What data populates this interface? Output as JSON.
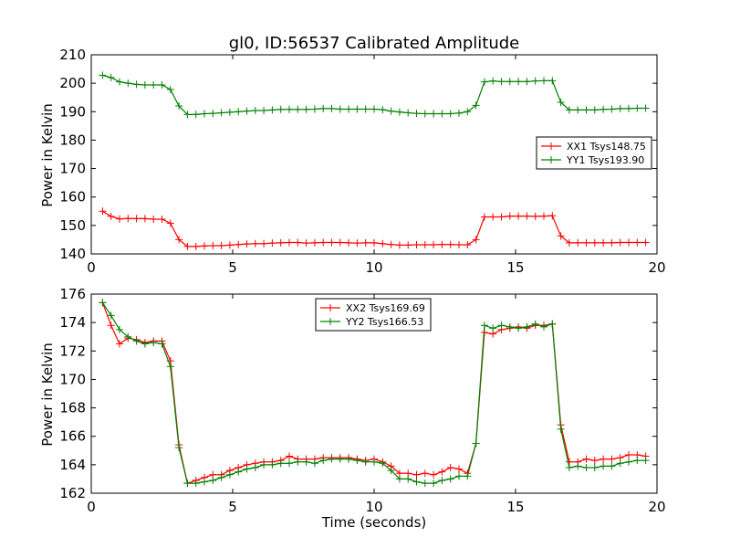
{
  "chart_data": [
    {
      "type": "line",
      "title": "gl0, ID:56537 Calibrated Amplitude",
      "xlabel": "",
      "ylabel": "Power in Kelvin",
      "xlim": [
        0,
        20
      ],
      "ylim": [
        140,
        210
      ],
      "xticks": [
        0,
        5,
        10,
        15,
        20
      ],
      "yticks": [
        140,
        150,
        160,
        170,
        180,
        190,
        200,
        210
      ],
      "grid": false,
      "legend": "right",
      "series": [
        {
          "name": "XX1 Tsys148.75",
          "color": "#ff0000",
          "marker": "plus",
          "x": [
            0.4,
            0.7,
            1.0,
            1.3,
            1.6,
            1.9,
            2.2,
            2.5,
            2.8,
            3.1,
            3.4,
            3.7,
            4.0,
            4.3,
            4.6,
            4.9,
            5.2,
            5.5,
            5.8,
            6.1,
            6.4,
            6.7,
            7.0,
            7.3,
            7.6,
            7.9,
            8.2,
            8.5,
            8.8,
            9.1,
            9.4,
            9.7,
            10.0,
            10.3,
            10.6,
            10.9,
            11.2,
            11.5,
            11.8,
            12.1,
            12.4,
            12.7,
            13.0,
            13.3,
            13.6,
            13.9,
            14.2,
            14.5,
            14.8,
            15.1,
            15.4,
            15.7,
            16.0,
            16.3,
            16.6,
            16.9,
            17.2,
            17.5,
            17.8,
            18.1,
            18.4,
            18.7,
            19.0,
            19.3,
            19.6
          ],
          "y": [
            155,
            153.2,
            152.3,
            152.5,
            152.4,
            152.4,
            152.2,
            152.2,
            150.8,
            145,
            142.6,
            142.6,
            142.8,
            142.9,
            142.9,
            143.1,
            143.3,
            143.5,
            143.6,
            143.6,
            143.8,
            143.9,
            144.0,
            144.0,
            143.8,
            143.9,
            144.0,
            144.0,
            144.0,
            143.9,
            143.8,
            143.9,
            143.9,
            143.6,
            143.3,
            143.1,
            143.1,
            143.2,
            143.2,
            143.2,
            143.3,
            143.3,
            143.2,
            143.2,
            145,
            153,
            153,
            153,
            153.3,
            153.3,
            153.3,
            153.2,
            153.3,
            153.4,
            146.3,
            143.9,
            143.9,
            143.9,
            143.9,
            143.9,
            143.9,
            144.0,
            144.0,
            144.0,
            144.0
          ]
        },
        {
          "name": "YY1 Tsys193.90",
          "color": "#008000",
          "marker": "plus",
          "x": [
            0.4,
            0.7,
            1.0,
            1.3,
            1.6,
            1.9,
            2.2,
            2.5,
            2.8,
            3.1,
            3.4,
            3.7,
            4.0,
            4.3,
            4.6,
            4.9,
            5.2,
            5.5,
            5.8,
            6.1,
            6.4,
            6.7,
            7.0,
            7.3,
            7.6,
            7.9,
            8.2,
            8.5,
            8.8,
            9.1,
            9.4,
            9.7,
            10.0,
            10.3,
            10.6,
            10.9,
            11.2,
            11.5,
            11.8,
            12.1,
            12.4,
            12.7,
            13.0,
            13.3,
            13.6,
            13.9,
            14.2,
            14.5,
            14.8,
            15.1,
            15.4,
            15.7,
            16.0,
            16.3,
            16.6,
            16.9,
            17.2,
            17.5,
            17.8,
            18.1,
            18.4,
            18.7,
            19.0,
            19.3,
            19.6
          ],
          "y": [
            202.8,
            202,
            200.5,
            200,
            199.6,
            199.4,
            199.4,
            199.4,
            197.8,
            192,
            189,
            189,
            189.3,
            189.4,
            189.6,
            189.8,
            190,
            190.2,
            190.4,
            190.4,
            190.6,
            190.8,
            190.8,
            190.8,
            190.8,
            190.9,
            191.1,
            191.1,
            190.9,
            190.9,
            190.9,
            190.9,
            190.9,
            190.7,
            190.2,
            189.9,
            189.6,
            189.4,
            189.3,
            189.3,
            189.3,
            189.3,
            189.5,
            190,
            192.2,
            200.5,
            200.8,
            200.6,
            200.6,
            200.6,
            200.6,
            200.8,
            200.9,
            200.9,
            193.3,
            190.6,
            190.6,
            190.6,
            190.6,
            190.8,
            190.9,
            191.1,
            191.1,
            191.2,
            191.2
          ]
        }
      ]
    },
    {
      "type": "line",
      "title": "",
      "xlabel": "Time (seconds)",
      "ylabel": "Power in Kelvin",
      "xlim": [
        0,
        20
      ],
      "ylim": [
        162,
        176
      ],
      "xticks": [
        0,
        5,
        10,
        15,
        20
      ],
      "yticks": [
        162,
        164,
        166,
        168,
        170,
        172,
        174,
        176
      ],
      "grid": false,
      "legend": "upper-center",
      "series": [
        {
          "name": "XX2 Tsys169.69",
          "color": "#ff0000",
          "marker": "plus",
          "x": [
            0.4,
            0.7,
            1.0,
            1.3,
            1.6,
            1.9,
            2.2,
            2.5,
            2.8,
            3.1,
            3.4,
            3.7,
            4.0,
            4.3,
            4.6,
            4.9,
            5.2,
            5.5,
            5.8,
            6.1,
            6.4,
            6.7,
            7.0,
            7.3,
            7.6,
            7.9,
            8.2,
            8.5,
            8.8,
            9.1,
            9.4,
            9.7,
            10.0,
            10.3,
            10.6,
            10.9,
            11.2,
            11.5,
            11.8,
            12.1,
            12.4,
            12.7,
            13.0,
            13.3,
            13.6,
            13.9,
            14.2,
            14.5,
            14.8,
            15.1,
            15.4,
            15.7,
            16.0,
            16.3,
            16.6,
            16.9,
            17.2,
            17.5,
            17.8,
            18.1,
            18.4,
            18.7,
            19.0,
            19.3,
            19.6
          ],
          "y": [
            175.4,
            173.8,
            172.5,
            172.9,
            172.8,
            172.6,
            172.7,
            172.7,
            171.3,
            165.4,
            162.7,
            162.9,
            163.1,
            163.3,
            163.3,
            163.6,
            163.8,
            164.0,
            164.1,
            164.2,
            164.2,
            164.3,
            164.6,
            164.4,
            164.4,
            164.4,
            164.5,
            164.5,
            164.5,
            164.5,
            164.4,
            164.3,
            164.4,
            164.2,
            163.9,
            163.4,
            163.4,
            163.3,
            163.4,
            163.3,
            163.5,
            163.8,
            163.7,
            163.4,
            165.5,
            173.3,
            173.2,
            173.5,
            173.6,
            173.7,
            173.6,
            173.8,
            173.8,
            173.9,
            166.8,
            164.2,
            164.2,
            164.4,
            164.3,
            164.4,
            164.4,
            164.5,
            164.7,
            164.7,
            164.6
          ]
        },
        {
          "name": "YY2 Tsys166.53",
          "color": "#008000",
          "marker": "plus",
          "x": [
            0.4,
            0.7,
            1.0,
            1.3,
            1.6,
            1.9,
            2.2,
            2.5,
            2.8,
            3.1,
            3.4,
            3.7,
            4.0,
            4.3,
            4.6,
            4.9,
            5.2,
            5.5,
            5.8,
            6.1,
            6.4,
            6.7,
            7.0,
            7.3,
            7.6,
            7.9,
            8.2,
            8.5,
            8.8,
            9.1,
            9.4,
            9.7,
            10.0,
            10.3,
            10.6,
            10.9,
            11.2,
            11.5,
            11.8,
            12.1,
            12.4,
            12.7,
            13.0,
            13.3,
            13.6,
            13.9,
            14.2,
            14.5,
            14.8,
            15.1,
            15.4,
            15.7,
            16.0,
            16.3,
            16.6,
            16.9,
            17.2,
            17.5,
            17.8,
            18.1,
            18.4,
            18.7,
            19.0,
            19.3,
            19.6
          ],
          "y": [
            175.4,
            174.5,
            173.5,
            173.0,
            172.7,
            172.5,
            172.6,
            172.5,
            170.9,
            165.2,
            162.7,
            162.7,
            162.8,
            162.9,
            163.1,
            163.3,
            163.5,
            163.7,
            163.8,
            164.0,
            164.0,
            164.1,
            164.1,
            164.2,
            164.2,
            164.1,
            164.3,
            164.4,
            164.4,
            164.4,
            164.3,
            164.2,
            164.2,
            164.1,
            163.6,
            163.0,
            163.0,
            162.8,
            162.7,
            162.7,
            162.9,
            163.0,
            163.2,
            163.2,
            165.5,
            173.8,
            173.6,
            173.8,
            173.7,
            173.6,
            173.7,
            173.9,
            173.7,
            173.9,
            166.5,
            163.8,
            163.9,
            163.8,
            163.8,
            163.9,
            163.9,
            164.1,
            164.2,
            164.3,
            164.3
          ]
        }
      ]
    }
  ]
}
